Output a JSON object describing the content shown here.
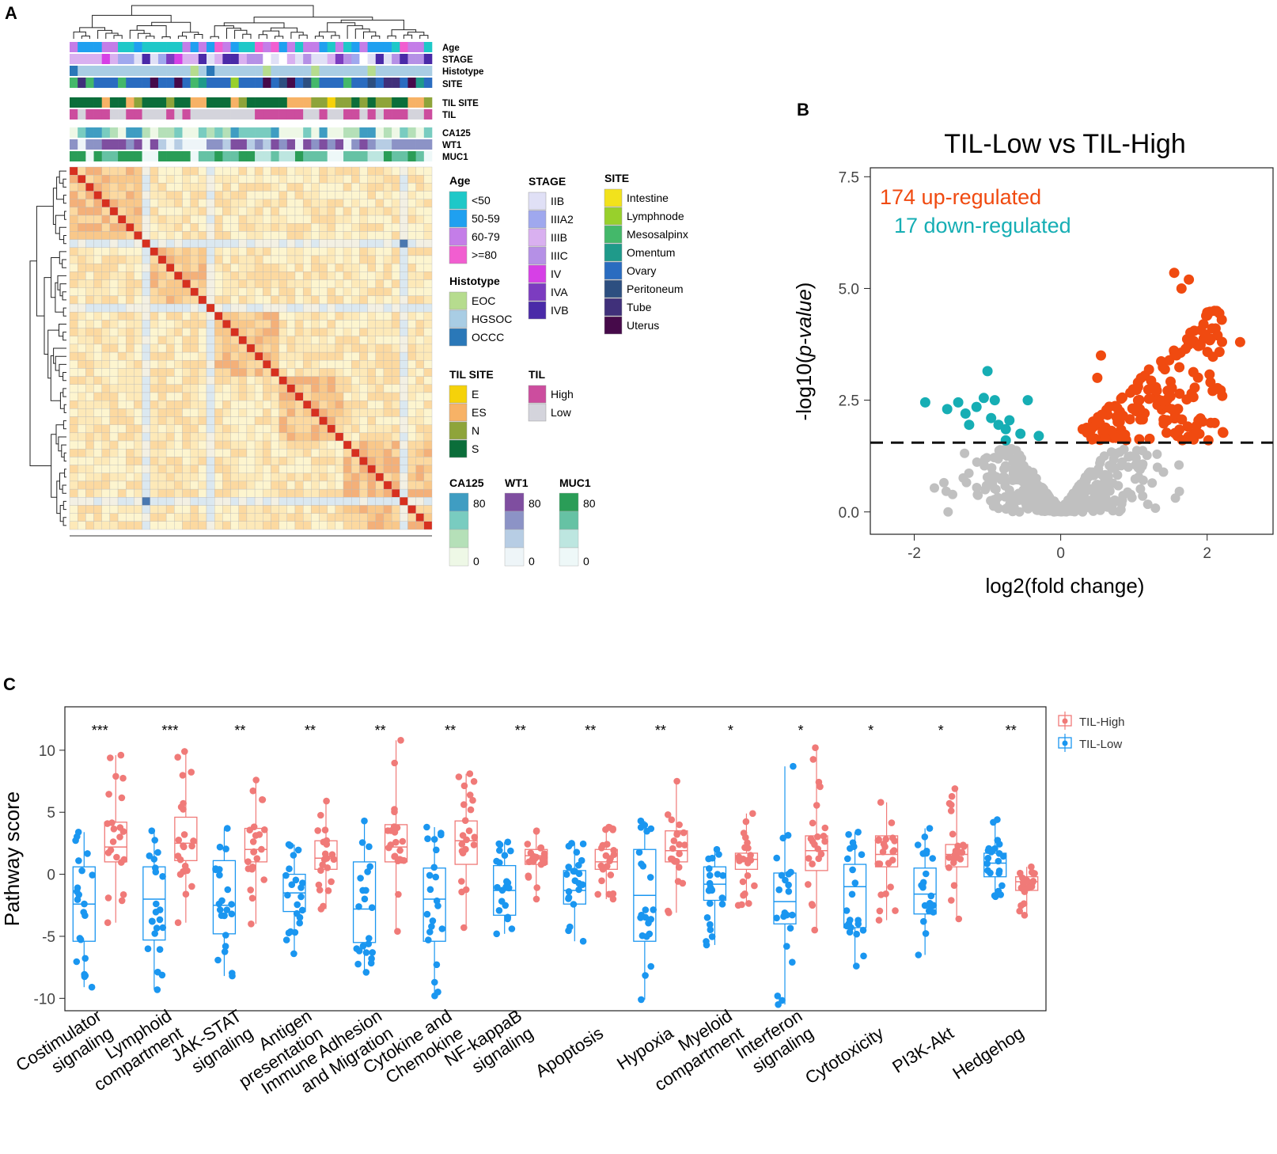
{
  "panels": {
    "a": "A",
    "b": "B",
    "c": "C"
  },
  "heatmap": {
    "annotation_labels": [
      "Age",
      "STAGE",
      "Histotype",
      "SITE",
      "TIL SITE",
      "TIL",
      "CA125",
      "WT1",
      "MUC1"
    ],
    "legends": {
      "age": {
        "title": "Age",
        "items": [
          {
            "label": "<50",
            "color": "#1ec8c8"
          },
          {
            "label": "50-59",
            "color": "#1fa0f0"
          },
          {
            "label": "60-79",
            "color": "#c47de8"
          },
          {
            "label": ">=80",
            "color": "#f15ed0"
          }
        ]
      },
      "stage": {
        "title": "STAGE",
        "items": [
          {
            "label": "IIB",
            "color": "#e0e0f6"
          },
          {
            "label": "IIIA2",
            "color": "#9fa8ee"
          },
          {
            "label": "IIIB",
            "color": "#d9b0f0"
          },
          {
            "label": "IIIC",
            "color": "#b590e6"
          },
          {
            "label": "IV",
            "color": "#d640e6"
          },
          {
            "label": "IVA",
            "color": "#7c3cc0"
          },
          {
            "label": "IVB",
            "color": "#4a2aa8"
          }
        ]
      },
      "site": {
        "title": "SITE",
        "items": [
          {
            "label": "Intestine",
            "color": "#f2e21c"
          },
          {
            "label": "Lymphnode",
            "color": "#98d02c"
          },
          {
            "label": "Mesosalpinx",
            "color": "#44b86a"
          },
          {
            "label": "Omentum",
            "color": "#1f9a8a"
          },
          {
            "label": "Ovary",
            "color": "#2a6cc0"
          },
          {
            "label": "Peritoneum",
            "color": "#2d4f80"
          },
          {
            "label": "Tube",
            "color": "#40307a"
          },
          {
            "label": "Uterus",
            "color": "#460a4a"
          }
        ]
      },
      "histotype": {
        "title": "Histotype",
        "items": [
          {
            "label": "EOC",
            "color": "#b6dc8e"
          },
          {
            "label": "HGSOC",
            "color": "#a9cde4"
          },
          {
            "label": "OCCC",
            "color": "#2a78b8"
          }
        ]
      },
      "til_site": {
        "title": "TIL SITE",
        "items": [
          {
            "label": "E",
            "color": "#f5d20a"
          },
          {
            "label": "ES",
            "color": "#f7b266"
          },
          {
            "label": "N",
            "color": "#8ea43a"
          },
          {
            "label": "S",
            "color": "#0b6e3a"
          }
        ]
      },
      "til": {
        "title": "TIL",
        "items": [
          {
            "label": "High",
            "color": "#cc4d9e"
          },
          {
            "label": "Low",
            "color": "#d4d4dc"
          }
        ]
      },
      "ca125": {
        "title": "CA125",
        "top": "80",
        "bottom": "0",
        "colors": [
          "#3f9dc2",
          "#79ccc0",
          "#b5e0b8",
          "#eef8e6"
        ]
      },
      "wt1": {
        "title": "WT1",
        "top": "80",
        "bottom": "0",
        "colors": [
          "#7f4ea0",
          "#8c93c6",
          "#b7cde4",
          "#eef5f8"
        ]
      },
      "muc1": {
        "title": "MUC1",
        "top": "80",
        "bottom": "0",
        "colors": [
          "#2a9d57",
          "#66c2a4",
          "#bde6e0",
          "#eef8f8"
        ]
      }
    }
  },
  "volcano": {
    "title": "TIL-Low vs TIL-High",
    "up_label": "174 up-regulated",
    "down_label": "17 down-regulated",
    "up_color": "#f04a10",
    "down_color": "#16aeb4",
    "ns_color": "#c0c0c0",
    "xlabel": "log2(fold change)",
    "ylabel_main": "-log10(",
    "ylabel_italic": "p-value",
    "ylabel_close": ")",
    "threshold": 1.55
  },
  "boxplot": {
    "ylabel": "Pathway score",
    "legend": [
      {
        "label": "TIL-High",
        "color": "#f07a78"
      },
      {
        "label": "TIL-Low",
        "color": "#1a96f0"
      }
    ]
  },
  "chart_data": [
    {
      "type": "heatmap",
      "description_values": "sample-sample correlation matrix, hierarchically clustered",
      "n_samples": 45
    },
    {
      "type": "scatter",
      "title": "TIL-Low vs TIL-High",
      "xlabel": "log2(fold change)",
      "ylabel": "-log10(p-value)",
      "xlim": [
        -2.6,
        2.9
      ],
      "ylim": [
        -0.5,
        7.7
      ],
      "xticks": [
        "-2",
        "0",
        "2"
      ],
      "yticks": [
        "0.0",
        "2.5",
        "5.0",
        "7.5"
      ],
      "up_count": 174,
      "down_count": 17,
      "down_points": [
        [
          -1.85,
          2.45
        ],
        [
          -1.55,
          2.3
        ],
        [
          -1.4,
          2.45
        ],
        [
          -1.3,
          2.2
        ],
        [
          -1.25,
          1.95
        ],
        [
          -1.15,
          2.35
        ],
        [
          -1.05,
          2.55
        ],
        [
          -1.0,
          3.15
        ],
        [
          -0.95,
          2.1
        ],
        [
          -0.9,
          2.5
        ],
        [
          -0.85,
          1.95
        ],
        [
          -0.75,
          1.85
        ],
        [
          -0.7,
          2.05
        ],
        [
          -0.55,
          1.75
        ],
        [
          -0.45,
          2.5
        ],
        [
          -0.3,
          1.7
        ],
        [
          -0.75,
          1.6
        ]
      ],
      "up_highlights": [
        [
          1.55,
          5.35
        ],
        [
          1.65,
          5.0
        ],
        [
          1.75,
          5.2
        ],
        [
          2.2,
          4.3
        ],
        [
          2.45,
          3.8
        ],
        [
          2.1,
          4.5
        ],
        [
          1.95,
          4.2
        ],
        [
          0.55,
          3.5
        ],
        [
          0.5,
          3.0
        ],
        [
          0.3,
          1.85
        ]
      ]
    },
    {
      "type": "box",
      "ylabel": "Pathway score",
      "ylim": [
        -11,
        13.5
      ],
      "yticks": [
        "10",
        "5",
        "0",
        "-5",
        "-10"
      ],
      "categories": [
        "Costimulator signaling",
        "Lymphoid compartment",
        "JAK-STAT signaling",
        "Antigen presentation",
        "Immune Adhesion and Migration",
        "Cytokine and Chemokine",
        "NF-kappaB signaling",
        "Apoptosis",
        "Hypoxia",
        "Myeloid compartment",
        "Interferon signaling",
        "Cytotoxicity",
        "PI3K-Akt",
        "Hedgehog"
      ],
      "tick_labels": [
        [
          "Costimulator",
          "signaling"
        ],
        [
          "Lymphoid",
          "compartment"
        ],
        [
          "JAK-STAT",
          "signaling"
        ],
        [
          "Antigen",
          "presentation"
        ],
        [
          "Immune Adhesion",
          "and Migration"
        ],
        [
          "Cytokine and",
          "Chemokine"
        ],
        [
          "NF-kappaB",
          "signaling"
        ],
        [
          "Apoptosis"
        ],
        [
          "Hypoxia"
        ],
        [
          "Myeloid",
          "compartment"
        ],
        [
          "Interferon",
          "signaling"
        ],
        [
          "Cytotoxicity"
        ],
        [
          "PI3K-Akt"
        ],
        [
          "Hedgehog"
        ]
      ],
      "significance": [
        "***",
        "***",
        "**",
        "**",
        "**",
        "**",
        "**",
        "**",
        "**",
        "*",
        "*",
        "*",
        "*",
        "**"
      ],
      "series": [
        {
          "name": "TIL-Low",
          "stats": [
            {
              "min": -9.1,
              "q1": -5.4,
              "median": -2.4,
              "q3": 0.6,
              "max": 3.4
            },
            {
              "min": -9.3,
              "q1": -5.3,
              "median": -2.0,
              "q3": 0.6,
              "max": 3.5
            },
            {
              "min": -8.2,
              "q1": -4.8,
              "median": -2.5,
              "q3": 1.1,
              "max": 3.7
            },
            {
              "min": -6.4,
              "q1": -3.0,
              "median": -1.5,
              "q3": 0.0,
              "max": 2.4
            },
            {
              "min": -7.9,
              "q1": -5.5,
              "median": -2.8,
              "q3": 1.0,
              "max": 4.3
            },
            {
              "min": -9.8,
              "q1": -5.4,
              "median": -2.0,
              "q3": 0.5,
              "max": 3.8
            },
            {
              "min": -4.8,
              "q1": -3.3,
              "median": -1.3,
              "q3": 0.7,
              "max": 2.6
            },
            {
              "min": -5.4,
              "q1": -2.4,
              "median": -1.3,
              "q3": 0.3,
              "max": 2.5
            },
            {
              "min": -10.1,
              "q1": -5.4,
              "median": -1.7,
              "q3": 2.0,
              "max": 4.3
            },
            {
              "min": -5.7,
              "q1": -2.1,
              "median": -0.8,
              "q3": 0.6,
              "max": 2.0
            },
            {
              "min": -10.5,
              "q1": -4.0,
              "median": -2.2,
              "q3": 0.1,
              "max": 8.7
            },
            {
              "min": -7.4,
              "q1": -4.3,
              "median": -1.0,
              "q3": 0.8,
              "max": 3.4
            },
            {
              "min": -6.5,
              "q1": -3.2,
              "median": -1.6,
              "q3": 0.5,
              "max": 3.7
            },
            {
              "min": -1.8,
              "q1": -0.2,
              "median": 0.9,
              "q3": 1.7,
              "max": 4.4
            }
          ]
        },
        {
          "name": "TIL-High",
          "stats": [
            {
              "min": -3.9,
              "q1": 1.0,
              "median": 2.2,
              "q3": 4.2,
              "max": 9.6
            },
            {
              "min": -3.9,
              "q1": 1.1,
              "median": 2.5,
              "q3": 4.6,
              "max": 9.9
            },
            {
              "min": -4.0,
              "q1": 1.0,
              "median": 2.0,
              "q3": 3.7,
              "max": 7.6
            },
            {
              "min": -2.8,
              "q1": 0.4,
              "median": 1.3,
              "q3": 2.7,
              "max": 5.9
            },
            {
              "min": -4.6,
              "q1": 1.0,
              "median": 2.2,
              "q3": 4.0,
              "max": 10.8
            },
            {
              "min": -4.3,
              "q1": 0.8,
              "median": 2.7,
              "q3": 4.3,
              "max": 8.1
            },
            {
              "min": -2.0,
              "q1": 0.8,
              "median": 1.5,
              "q3": 2.0,
              "max": 3.5
            },
            {
              "min": -2.0,
              "q1": 0.4,
              "median": 1.0,
              "q3": 2.0,
              "max": 3.8
            },
            {
              "min": -3.1,
              "q1": 1.0,
              "median": 1.9,
              "q3": 3.5,
              "max": 7.5
            },
            {
              "min": -2.5,
              "q1": 0.4,
              "median": 1.2,
              "q3": 1.7,
              "max": 4.9
            },
            {
              "min": -4.5,
              "q1": 0.3,
              "median": 1.9,
              "q3": 3.1,
              "max": 10.2
            },
            {
              "min": -3.7,
              "q1": 0.6,
              "median": 1.6,
              "q3": 3.1,
              "max": 5.8
            },
            {
              "min": -3.6,
              "q1": 0.6,
              "median": 1.6,
              "q3": 2.4,
              "max": 6.9
            },
            {
              "min": -3.3,
              "q1": -1.3,
              "median": -0.6,
              "q3": -0.2,
              "max": 0.6
            }
          ]
        }
      ]
    }
  ]
}
